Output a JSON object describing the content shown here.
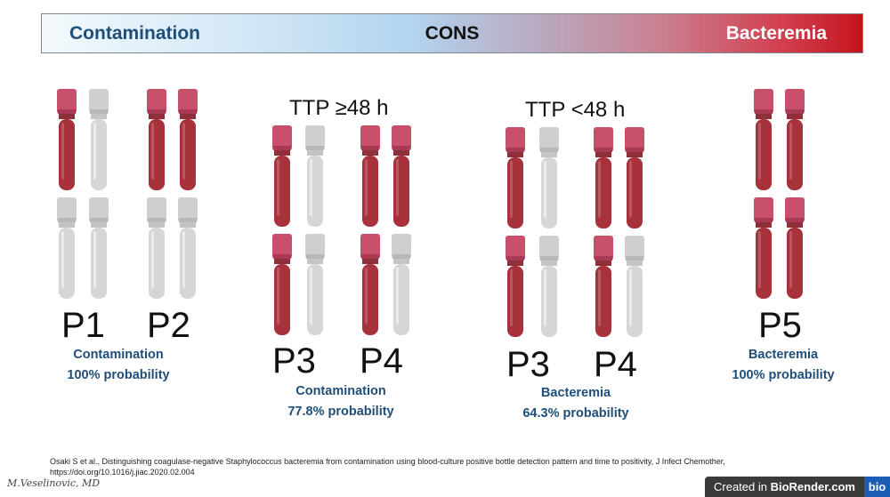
{
  "banner": {
    "left": "Contamination",
    "center": "CONS",
    "right": "Bacteremia"
  },
  "colors": {
    "blood": "#a8323c",
    "cap_red": "#c8506a",
    "empty_tube": "#d6d6d6",
    "caption_blue": "#1f4e79"
  },
  "groups": [
    {
      "id": "p1-p2",
      "heading": "",
      "labels": [
        "P1",
        "P2"
      ],
      "caption_line1": "Contamination",
      "caption_line2": "100% probability",
      "patients": [
        {
          "label": "P1",
          "top_row": [
            "blood",
            "empty"
          ],
          "bottom_row": [
            "empty",
            "empty"
          ]
        },
        {
          "label": "P2",
          "top_row": [
            "blood",
            "blood"
          ],
          "bottom_row": [
            "empty",
            "empty"
          ]
        }
      ]
    },
    {
      "id": "ttp-ge48",
      "heading": "TTP ≥48 h",
      "labels": [
        "P3",
        "P4"
      ],
      "caption_line1": "Contamination",
      "caption_line2": "77.8% probability",
      "patients": [
        {
          "label": "P3",
          "top_row": [
            "blood",
            "empty"
          ],
          "bottom_row": [
            "blood",
            "empty"
          ]
        },
        {
          "label": "P4",
          "top_row": [
            "blood",
            "blood"
          ],
          "bottom_row": [
            "blood",
            "empty"
          ]
        }
      ]
    },
    {
      "id": "ttp-lt48",
      "heading": "TTP <48 h",
      "labels": [
        "P3",
        "P4"
      ],
      "caption_line1": "Bacteremia",
      "caption_line2": "64.3% probability",
      "patients": [
        {
          "label": "P3",
          "top_row": [
            "blood",
            "empty"
          ],
          "bottom_row": [
            "blood",
            "empty"
          ]
        },
        {
          "label": "P4",
          "top_row": [
            "blood",
            "blood"
          ],
          "bottom_row": [
            "blood",
            "empty"
          ]
        }
      ]
    },
    {
      "id": "p5",
      "heading": "",
      "labels": [
        "P5"
      ],
      "caption_line1": "Bacteremia",
      "caption_line2": "100% probability",
      "patients": [
        {
          "label": "P5",
          "top_row": [
            "blood",
            "blood"
          ],
          "bottom_row": [
            "blood",
            "blood"
          ]
        }
      ]
    }
  ],
  "citation": {
    "line1": "Osaki S et al., Distinguishing coagulase-negative Staphylococcus bacteremia from contamination using blood-culture positive bottle detection pattern and time to positivity, J Infect Chemother,",
    "line2": "https://doi.org/10.1016/j.jiac.2020.02.004"
  },
  "signature": "M.Veselinovic, MD",
  "biorender": {
    "prefix": "Created in ",
    "brand": "BioRender.com",
    "logo": "bio"
  }
}
